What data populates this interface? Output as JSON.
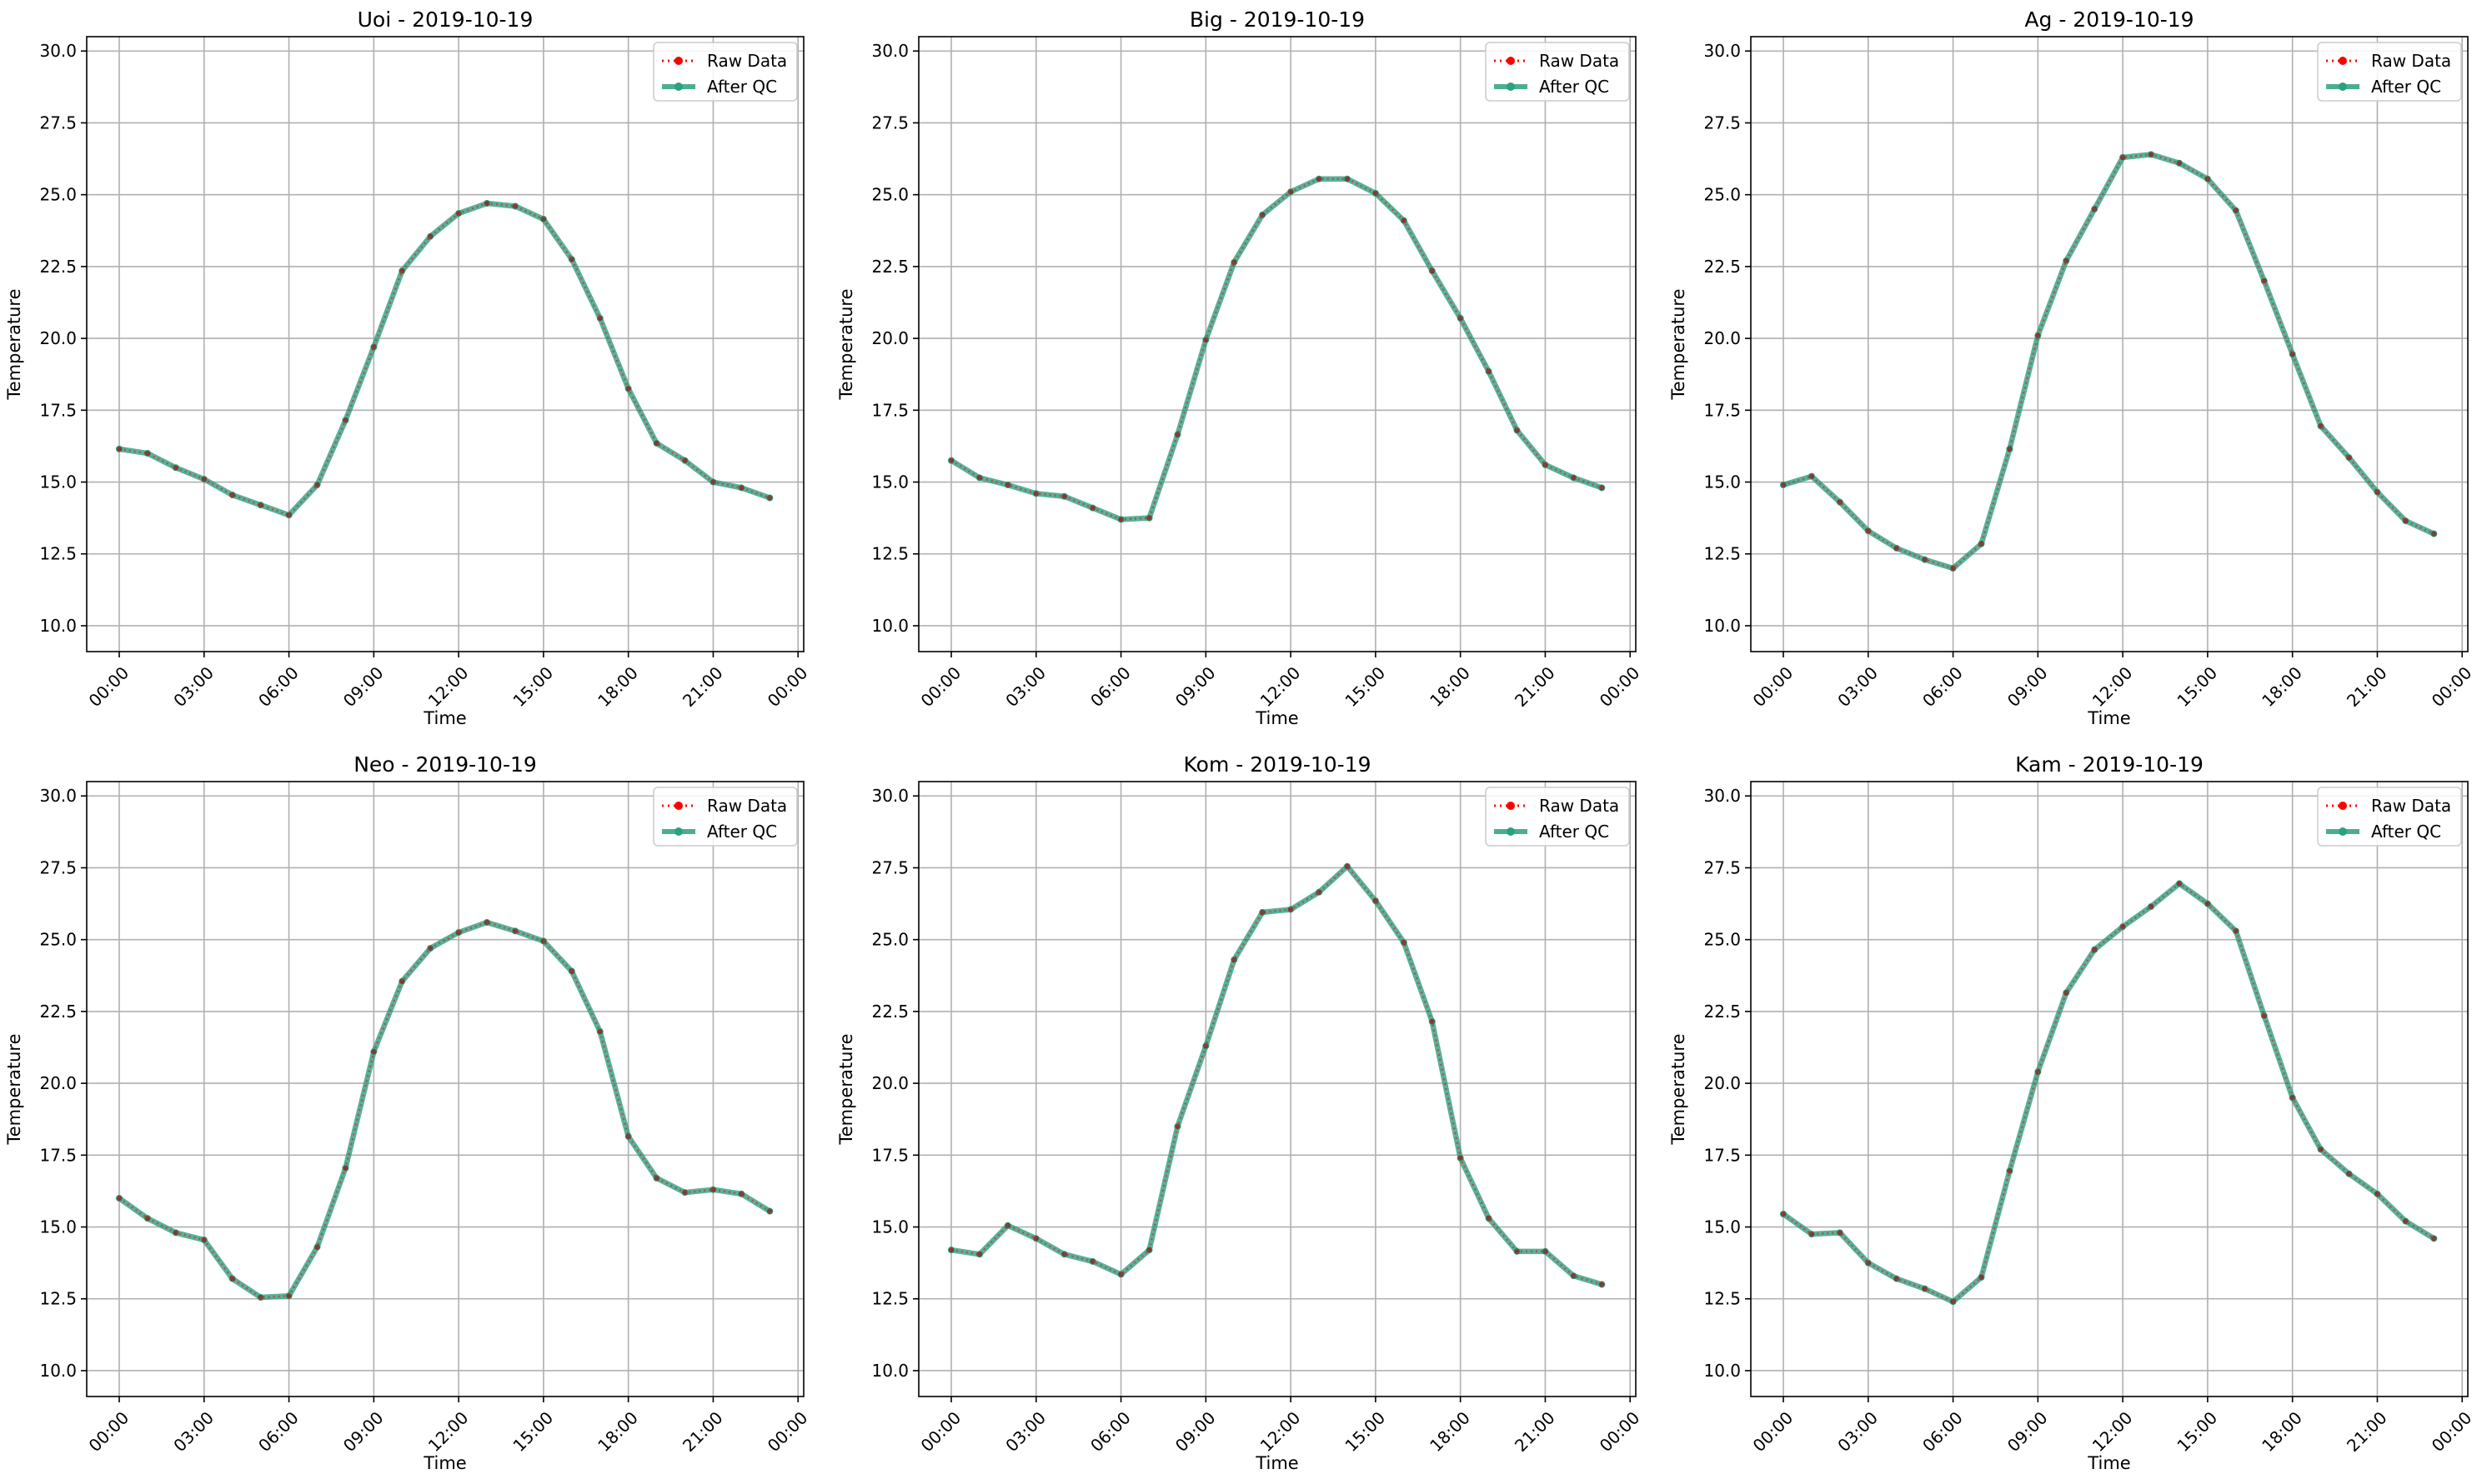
{
  "figure": {
    "x_ticks": [
      "00:00",
      "03:00",
      "06:00",
      "09:00",
      "12:00",
      "15:00",
      "18:00",
      "21:00",
      "00:00"
    ],
    "y_ticks": [
      "10.0",
      "12.5",
      "15.0",
      "17.5",
      "20.0",
      "22.5",
      "25.0",
      "27.5",
      "30.0"
    ],
    "xlabel": "Time",
    "ylabel": "Temperature",
    "legend": {
      "raw": "Raw Data",
      "qc": "After QC"
    },
    "colors": {
      "raw": "#ff0000",
      "qc": "#2ca080",
      "raw_points": "#b30000",
      "grid": "#b0b0b0"
    }
  },
  "chart_data": [
    {
      "type": "line",
      "title": "Uoi - 2019-10-19",
      "xlabel": "Time",
      "ylabel": "Temperature",
      "x_unit": "hour of day",
      "x": [
        0,
        1,
        2,
        3,
        4,
        5,
        6,
        7,
        8,
        9,
        10,
        11,
        12,
        13,
        14,
        15,
        16,
        17,
        18,
        19,
        20,
        21,
        22,
        23
      ],
      "xlim": [
        "00:00",
        "00:00 (+1 day)"
      ],
      "ylim": [
        9.1,
        30.5
      ],
      "grid": true,
      "legend_position": "top-right",
      "series": [
        {
          "name": "Raw Data",
          "style": "dotted line with dot markers",
          "color": "#ff0000",
          "values": [
            16.15,
            16.0,
            15.5,
            15.1,
            14.55,
            14.2,
            13.85,
            14.9,
            17.15,
            19.7,
            22.35,
            23.55,
            24.35,
            24.7,
            24.6,
            24.15,
            22.75,
            20.7,
            18.25,
            16.35,
            15.75,
            15.0,
            14.8,
            14.45
          ]
        },
        {
          "name": "After QC",
          "style": "thick solid line with dot markers",
          "color": "#2ca080",
          "values": [
            16.15,
            16.0,
            15.5,
            15.1,
            14.55,
            14.2,
            13.85,
            14.9,
            17.15,
            19.7,
            22.35,
            23.55,
            24.35,
            24.7,
            24.6,
            24.15,
            22.75,
            20.7,
            18.25,
            16.35,
            15.75,
            15.0,
            14.8,
            14.45
          ]
        }
      ]
    },
    {
      "type": "line",
      "title": "Big - 2019-10-19",
      "xlabel": "Time",
      "ylabel": "Temperature",
      "x_unit": "hour of day",
      "x": [
        0,
        1,
        2,
        3,
        4,
        5,
        6,
        7,
        8,
        9,
        10,
        11,
        12,
        13,
        14,
        15,
        16,
        17,
        18,
        19,
        20,
        21,
        22,
        23
      ],
      "xlim": [
        "00:00",
        "00:00 (+1 day)"
      ],
      "ylim": [
        9.1,
        30.5
      ],
      "grid": true,
      "legend_position": "top-right",
      "series": [
        {
          "name": "Raw Data",
          "style": "dotted line with dot markers",
          "color": "#ff0000",
          "values": [
            15.75,
            15.15,
            14.9,
            14.6,
            14.5,
            14.1,
            13.7,
            13.75,
            16.65,
            19.95,
            22.65,
            24.3,
            25.1,
            25.55,
            25.55,
            25.05,
            24.1,
            22.35,
            20.7,
            18.85,
            16.8,
            15.6,
            15.15,
            14.8
          ]
        },
        {
          "name": "After QC",
          "style": "thick solid line with dot markers",
          "color": "#2ca080",
          "values": [
            15.75,
            15.15,
            14.9,
            14.6,
            14.5,
            14.1,
            13.7,
            13.75,
            16.65,
            19.95,
            22.65,
            24.3,
            25.1,
            25.55,
            25.55,
            25.05,
            24.1,
            22.35,
            20.7,
            18.85,
            16.8,
            15.6,
            15.15,
            14.8
          ]
        }
      ]
    },
    {
      "type": "line",
      "title": "Ag - 2019-10-19",
      "xlabel": "Time",
      "ylabel": "Temperature",
      "x_unit": "hour of day",
      "x": [
        0,
        1,
        2,
        3,
        4,
        5,
        6,
        7,
        8,
        9,
        10,
        11,
        12,
        13,
        14,
        15,
        16,
        17,
        18,
        19,
        20,
        21,
        22,
        23
      ],
      "xlim": [
        "00:00",
        "00:00 (+1 day)"
      ],
      "ylim": [
        9.1,
        30.5
      ],
      "grid": true,
      "legend_position": "top-right",
      "series": [
        {
          "name": "Raw Data",
          "style": "dotted line with dot markers",
          "color": "#ff0000",
          "values": [
            14.9,
            15.2,
            14.3,
            13.3,
            12.7,
            12.3,
            12.0,
            12.85,
            16.15,
            20.1,
            22.7,
            24.5,
            26.3,
            26.4,
            26.1,
            25.55,
            24.45,
            22.0,
            19.45,
            16.95,
            15.85,
            14.65,
            13.65,
            13.2
          ]
        },
        {
          "name": "After QC",
          "style": "thick solid line with dot markers",
          "color": "#2ca080",
          "values": [
            14.9,
            15.2,
            14.3,
            13.3,
            12.7,
            12.3,
            12.0,
            12.85,
            16.15,
            20.1,
            22.7,
            24.5,
            26.3,
            26.4,
            26.1,
            25.55,
            24.45,
            22.0,
            19.45,
            16.95,
            15.85,
            14.65,
            13.65,
            13.2
          ]
        }
      ]
    },
    {
      "type": "line",
      "title": "Neo - 2019-10-19",
      "xlabel": "Time",
      "ylabel": "Temperature",
      "x_unit": "hour of day",
      "x": [
        0,
        1,
        2,
        3,
        4,
        5,
        6,
        7,
        8,
        9,
        10,
        11,
        12,
        13,
        14,
        15,
        16,
        17,
        18,
        19,
        20,
        21,
        22,
        23
      ],
      "xlim": [
        "00:00",
        "00:00 (+1 day)"
      ],
      "ylim": [
        9.1,
        30.5
      ],
      "grid": true,
      "legend_position": "top-right",
      "series": [
        {
          "name": "Raw Data",
          "style": "dotted line with dot markers",
          "color": "#ff0000",
          "values": [
            16.0,
            15.3,
            14.8,
            14.55,
            13.2,
            12.55,
            12.6,
            14.3,
            17.05,
            21.1,
            23.55,
            24.7,
            25.25,
            25.6,
            25.3,
            24.95,
            23.9,
            21.8,
            18.15,
            16.7,
            16.2,
            16.3,
            16.15,
            15.55
          ]
        },
        {
          "name": "After QC",
          "style": "thick solid line with dot markers",
          "color": "#2ca080",
          "values": [
            16.0,
            15.3,
            14.8,
            14.55,
            13.2,
            12.55,
            12.6,
            14.3,
            17.05,
            21.1,
            23.55,
            24.7,
            25.25,
            25.6,
            25.3,
            24.95,
            23.9,
            21.8,
            18.15,
            16.7,
            16.2,
            16.3,
            16.15,
            15.55
          ]
        }
      ]
    },
    {
      "type": "line",
      "title": "Kom - 2019-10-19",
      "xlabel": "Time",
      "ylabel": "Temperature",
      "x_unit": "hour of day",
      "x": [
        0,
        1,
        2,
        3,
        4,
        5,
        6,
        7,
        8,
        9,
        10,
        11,
        12,
        13,
        14,
        15,
        16,
        17,
        18,
        19,
        20,
        21,
        22,
        23
      ],
      "xlim": [
        "00:00",
        "00:00 (+1 day)"
      ],
      "ylim": [
        9.1,
        30.5
      ],
      "grid": true,
      "legend_position": "top-right",
      "series": [
        {
          "name": "Raw Data",
          "style": "dotted line with dot markers",
          "color": "#ff0000",
          "values": [
            14.2,
            14.05,
            15.05,
            14.6,
            14.05,
            13.8,
            13.35,
            14.2,
            18.5,
            21.3,
            24.3,
            25.95,
            26.05,
            26.65,
            27.55,
            26.35,
            24.9,
            22.15,
            17.4,
            15.3,
            14.15,
            14.15,
            13.3,
            13.0
          ]
        },
        {
          "name": "After QC",
          "style": "thick solid line with dot markers",
          "color": "#2ca080",
          "values": [
            14.2,
            14.05,
            15.05,
            14.6,
            14.05,
            13.8,
            13.35,
            14.2,
            18.5,
            21.3,
            24.3,
            25.95,
            26.05,
            26.65,
            27.55,
            26.35,
            24.9,
            22.15,
            17.4,
            15.3,
            14.15,
            14.15,
            13.3,
            13.0
          ]
        }
      ]
    },
    {
      "type": "line",
      "title": "Kam - 2019-10-19",
      "xlabel": "Time",
      "ylabel": "Temperature",
      "x_unit": "hour of day",
      "x": [
        0,
        1,
        2,
        3,
        4,
        5,
        6,
        7,
        8,
        9,
        10,
        11,
        12,
        13,
        14,
        15,
        16,
        17,
        18,
        19,
        20,
        21,
        22,
        23
      ],
      "xlim": [
        "00:00",
        "00:00 (+1 day)"
      ],
      "ylim": [
        9.1,
        30.5
      ],
      "grid": true,
      "legend_position": "top-right",
      "series": [
        {
          "name": "Raw Data",
          "style": "dotted line with dot markers",
          "color": "#ff0000",
          "values": [
            15.45,
            14.75,
            14.8,
            13.75,
            13.2,
            12.85,
            12.4,
            13.25,
            16.95,
            20.4,
            23.15,
            24.65,
            25.45,
            26.15,
            26.95,
            26.25,
            25.3,
            22.35,
            19.5,
            17.7,
            16.85,
            16.15,
            15.2,
            14.6
          ]
        },
        {
          "name": "After QC",
          "style": "thick solid line with dot markers",
          "color": "#2ca080",
          "values": [
            15.45,
            14.75,
            14.8,
            13.75,
            13.2,
            12.85,
            12.4,
            13.25,
            16.95,
            20.4,
            23.15,
            24.65,
            25.45,
            26.15,
            26.95,
            26.25,
            25.3,
            22.35,
            19.5,
            17.7,
            16.85,
            16.15,
            15.2,
            14.6
          ]
        }
      ]
    }
  ]
}
